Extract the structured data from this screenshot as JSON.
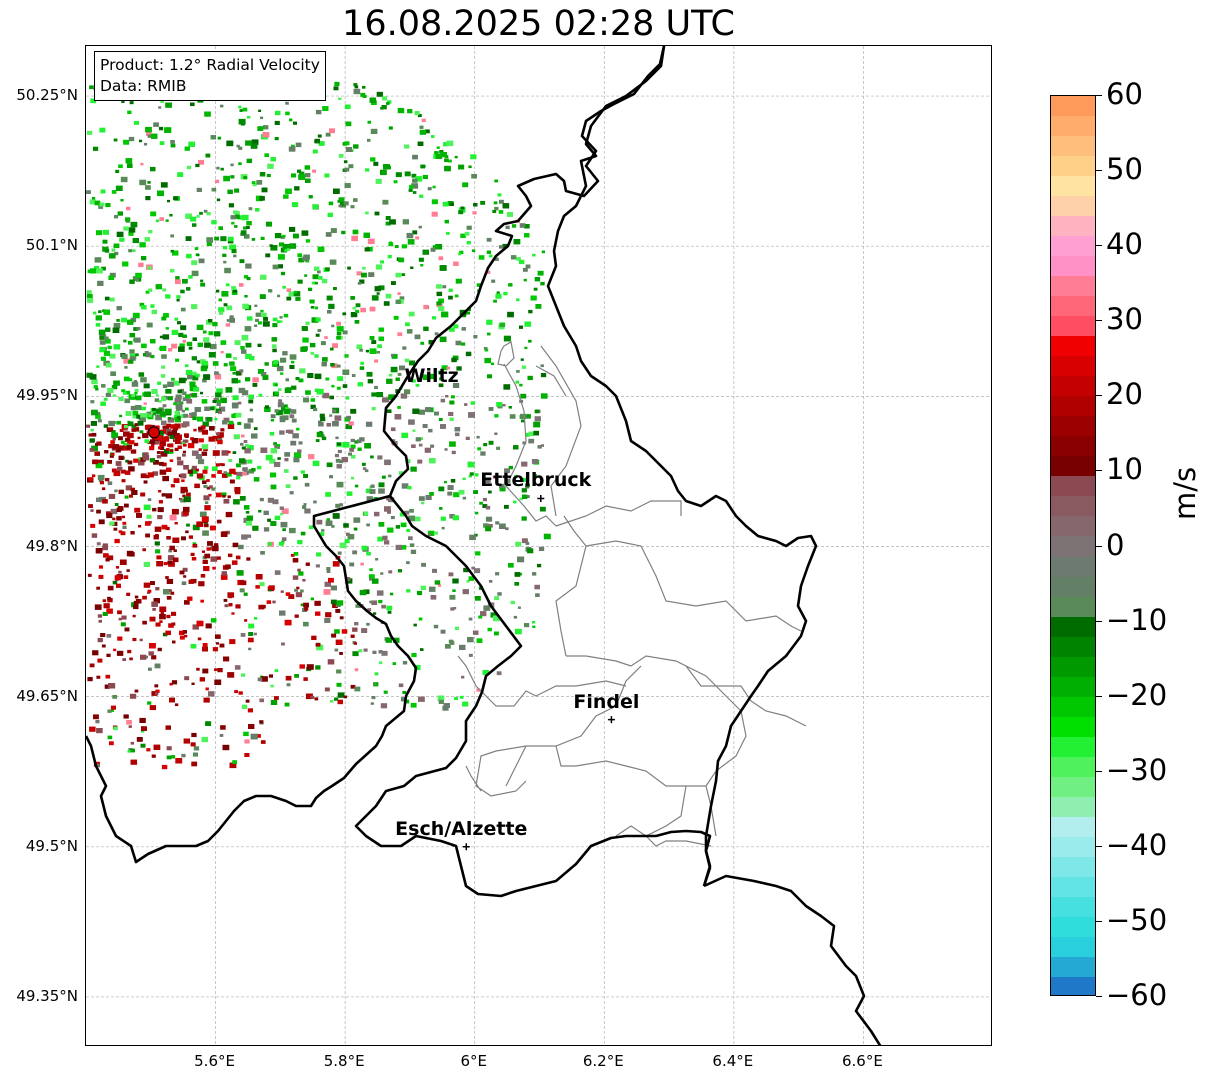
{
  "title": "16.08.2025 02:28 UTC",
  "info_box": {
    "product": "Product: 1.2° Radial Velocity",
    "data": "Data: RMIB"
  },
  "axes": {
    "lat_ticks": [
      "50.25°N",
      "50.1°N",
      "49.95°N",
      "49.8°N",
      "49.65°N",
      "49.5°N",
      "49.35°N"
    ],
    "lon_ticks": [
      "5.6°E",
      "5.8°E",
      "6°E",
      "6.2°E",
      "6.4°E",
      "6.6°E"
    ],
    "lat_range": [
      49.3,
      50.3
    ],
    "lon_range": [
      5.4,
      6.8
    ],
    "grid": true
  },
  "cities": [
    {
      "name": "Wiltz",
      "lon": 5.935,
      "lat": 49.966,
      "marker": false
    },
    {
      "name": "Ettelbruck",
      "lon": 6.102,
      "lat": 49.848,
      "marker": true
    },
    {
      "name": "Findel",
      "lon": 6.211,
      "lat": 49.627,
      "marker": true
    },
    {
      "name": "Esch/Alzette",
      "lon": 5.987,
      "lat": 49.5,
      "marker": true
    }
  ],
  "radar_site": {
    "lon": 5.505,
    "lat": 49.914,
    "color": "#d40000"
  },
  "colorbar": {
    "label": "m/s",
    "min": -60,
    "max": 60,
    "ticks": [
      "60",
      "50",
      "40",
      "30",
      "20",
      "10",
      "0",
      "−10",
      "−20",
      "−30",
      "−40",
      "−50",
      "−60"
    ],
    "colors": [
      "#1f78c8",
      "#23a9d4",
      "#29cfdc",
      "#2fdddd",
      "#47e0e0",
      "#62e4e4",
      "#7ee7e8",
      "#9aebeb",
      "#b2eeee",
      "#8fefb0",
      "#70ef82",
      "#4ff25a",
      "#22f032",
      "#00e000",
      "#00c800",
      "#00b000",
      "#009a00",
      "#008400",
      "#006c00",
      "#5a8a5a",
      "#638066",
      "#6d7a6f",
      "#7d7274",
      "#86676d",
      "#8a5a61",
      "#8b4a52",
      "#780000",
      "#8a0000",
      "#9c0000",
      "#b00000",
      "#c40000",
      "#d80000",
      "#f00000",
      "#ff4d62",
      "#ff6778",
      "#ff7d95",
      "#ff91c6",
      "#ff9fd2",
      "#ffb3c0",
      "#ffd1a8",
      "#ffe3a0",
      "#ffd088",
      "#ffbf7c",
      "#ffac6c",
      "#ff9a5a"
    ]
  }
}
